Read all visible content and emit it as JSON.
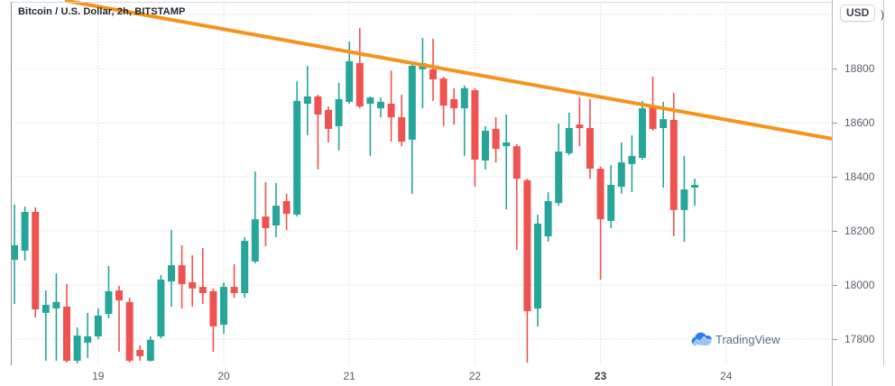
{
  "header": {
    "title": "Bitcoin / U.S. Dollar, 2h, BITSTAMP"
  },
  "price_axis": {
    "currency_button_label": "USD",
    "suffix_char": ")",
    "labels": [
      "18800",
      "18600",
      "18400",
      "18200",
      "18000",
      "17800"
    ]
  },
  "watermark": {
    "label": "TradingView"
  },
  "chart_data": {
    "type": "candlestick",
    "title": "Bitcoin / U.S. Dollar, 2h, BITSTAMP",
    "symbol": "Bitcoin / U.S. Dollar",
    "interval": "2h",
    "exchange": "BITSTAMP",
    "grid": true,
    "legend_position": "none",
    "ylim": [
      17690,
      19050
    ],
    "y_ticks": [
      18800,
      18600,
      18400,
      18200,
      18000,
      17800
    ],
    "y_grid_unlabeled": [
      19000
    ],
    "x_day_ticks": [
      {
        "candle_index": 8,
        "label": "19",
        "bold": false
      },
      {
        "candle_index": 20,
        "label": "20",
        "bold": false
      },
      {
        "candle_index": 32,
        "label": "21",
        "bold": false
      },
      {
        "candle_index": 44,
        "label": "22",
        "bold": false
      },
      {
        "candle_index": 56,
        "label": "23",
        "bold": true
      },
      {
        "candle_index": 68,
        "label": "24",
        "bold": false
      }
    ],
    "colors": {
      "up": "#26a69a",
      "down": "#ef5350",
      "trendline": "#f7931a",
      "grid": "#c7d6da"
    },
    "trendline": {
      "from": {
        "candle_index": 5,
        "price": 19050
      },
      "to": {
        "candle_index": 78.2,
        "price": 18540
      }
    },
    "candles_ohlc": [
      [
        18093,
        18297,
        17930,
        18147
      ],
      [
        18127,
        18290,
        18090,
        18270
      ],
      [
        18270,
        18287,
        17880,
        17910
      ],
      [
        17897,
        17980,
        17720,
        17927
      ],
      [
        17913,
        18043,
        17720,
        17937
      ],
      [
        17920,
        18003,
        17713,
        17720
      ],
      [
        17720,
        17843,
        17710,
        17813
      ],
      [
        17787,
        17897,
        17730,
        17810
      ],
      [
        17810,
        17913,
        17800,
        17887
      ],
      [
        17893,
        18070,
        17877,
        17977
      ],
      [
        17980,
        17997,
        17753,
        17943
      ],
      [
        17937,
        17953,
        17713,
        17720
      ],
      [
        17760,
        17777,
        17720,
        17737
      ],
      [
        17720,
        17810,
        17717,
        17797
      ],
      [
        17810,
        18037,
        17803,
        18020
      ],
      [
        18013,
        18203,
        17920,
        18073
      ],
      [
        18073,
        18147,
        17913,
        18003
      ],
      [
        18010,
        18110,
        17920,
        17987
      ],
      [
        17993,
        18137,
        17930,
        17970
      ],
      [
        17977,
        17987,
        17753,
        17847
      ],
      [
        17853,
        18010,
        17820,
        17993
      ],
      [
        17993,
        18077,
        17953,
        17970
      ],
      [
        17970,
        18177,
        17953,
        18163
      ],
      [
        18087,
        18420,
        18080,
        18243
      ],
      [
        18253,
        18380,
        18143,
        18210
      ],
      [
        18220,
        18377,
        18177,
        18293
      ],
      [
        18310,
        18337,
        18203,
        18263
      ],
      [
        18260,
        18753,
        18253,
        18680
      ],
      [
        18670,
        18810,
        18553,
        18697
      ],
      [
        18697,
        18703,
        18427,
        18630
      ],
      [
        18647,
        18660,
        18527,
        18577
      ],
      [
        18587,
        18747,
        18497,
        18687
      ],
      [
        18677,
        18900,
        18670,
        18827
      ],
      [
        18820,
        18950,
        18653,
        18660
      ],
      [
        18670,
        18697,
        18477,
        18693
      ],
      [
        18653,
        18693,
        18620,
        18677
      ],
      [
        18670,
        18793,
        18530,
        18620
      ],
      [
        18620,
        18703,
        18513,
        18530
      ],
      [
        18537,
        18827,
        18337,
        18810
      ],
      [
        18797,
        18913,
        18653,
        18820
      ],
      [
        18797,
        18910,
        18680,
        18760
      ],
      [
        18763,
        18770,
        18587,
        18663
      ],
      [
        18687,
        18727,
        18593,
        18653
      ],
      [
        18653,
        18737,
        18477,
        18727
      ],
      [
        18720,
        18727,
        18363,
        18463
      ],
      [
        18460,
        18587,
        18427,
        18570
      ],
      [
        18577,
        18620,
        18453,
        18503
      ],
      [
        18513,
        18630,
        18280,
        18527
      ],
      [
        18513,
        18520,
        18130,
        18393
      ],
      [
        18387,
        18393,
        17713,
        17903
      ],
      [
        17913,
        18260,
        17847,
        18227
      ],
      [
        18180,
        18343,
        18160,
        18310
      ],
      [
        18303,
        18597,
        18293,
        18493
      ],
      [
        18487,
        18637,
        18480,
        18580
      ],
      [
        18593,
        18693,
        18513,
        18580
      ],
      [
        18580,
        18687,
        18393,
        18430
      ],
      [
        18430,
        18437,
        18020,
        18243
      ],
      [
        18237,
        18443,
        18210,
        18370
      ],
      [
        18363,
        18527,
        18337,
        18453
      ],
      [
        18447,
        18553,
        18343,
        18477
      ],
      [
        18470,
        18680,
        18463,
        18653
      ],
      [
        18660,
        18770,
        18570,
        18577
      ],
      [
        18580,
        18677,
        18360,
        18613
      ],
      [
        18610,
        18710,
        18180,
        18277
      ],
      [
        18277,
        18477,
        18160,
        18353
      ],
      [
        18360,
        18393,
        18293,
        18370
      ]
    ]
  }
}
